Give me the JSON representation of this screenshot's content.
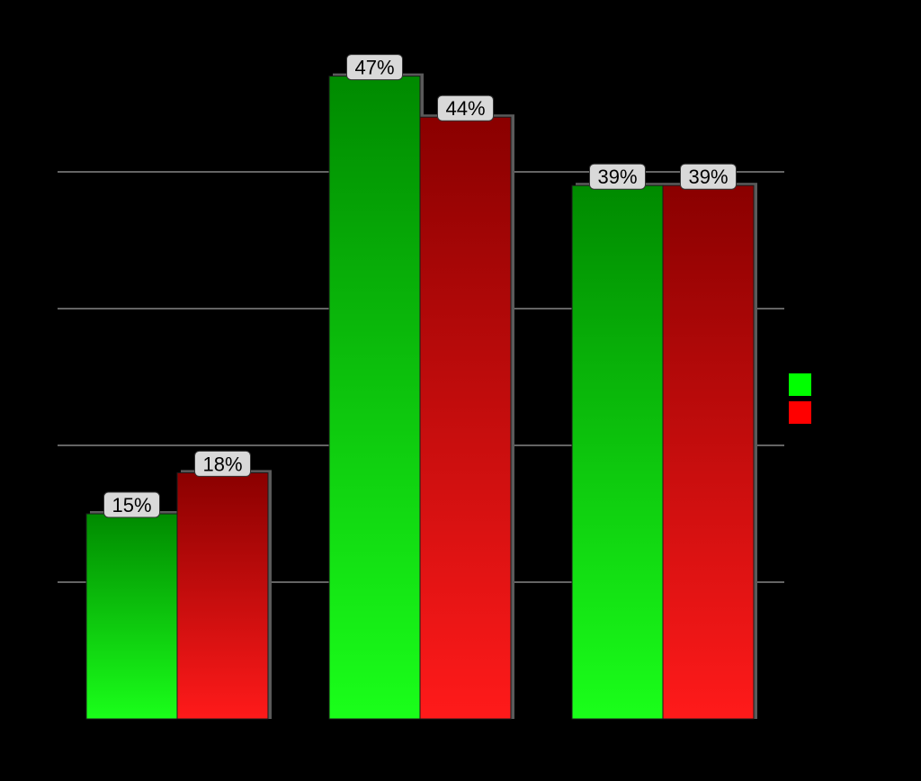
{
  "chart_data": {
    "type": "bar",
    "title": "",
    "xlabel": "",
    "ylabel": "",
    "categories": [
      "",
      "",
      ""
    ],
    "series": [
      {
        "color": "#00ff00",
        "values": [
          15,
          47,
          39
        ],
        "labels": [
          "15%",
          "47%",
          "39%"
        ]
      },
      {
        "color": "#ff0000",
        "values": [
          18,
          44,
          39
        ],
        "labels": [
          "18%",
          "44%",
          "39%"
        ]
      }
    ],
    "ylim": [
      0,
      50
    ],
    "y_unit": "%",
    "grid": true,
    "grid_values": [
      10,
      20,
      30,
      40
    ],
    "legend": {
      "placement": "right",
      "entries": [
        {
          "color": "#00ff00"
        },
        {
          "color": "#ff0000"
        }
      ]
    }
  },
  "colors": {
    "background": "#000000",
    "gridline": "#c8c8c8",
    "label_box_fill": "#d9d9d9",
    "label_box_stroke": "#333333",
    "bar_shadow": "#5a5a5a",
    "green_top": "#008a00",
    "green_bottom": "#1aff1a",
    "red_top": "#8a0000",
    "red_bottom": "#ff1a1a"
  }
}
